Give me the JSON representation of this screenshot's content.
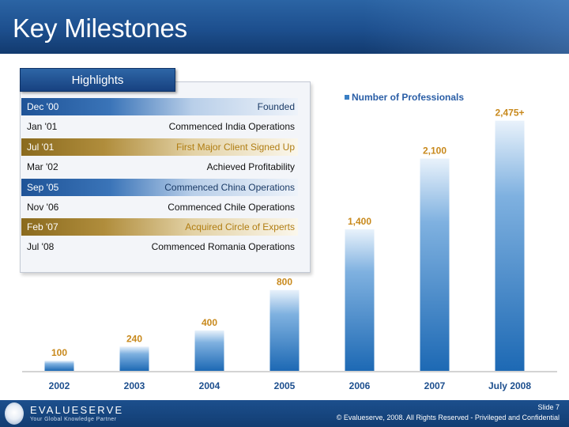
{
  "slide": {
    "title": "Key Milestones",
    "highlights_header": "Highlights",
    "milestones": [
      {
        "date": "Dec '00",
        "event": "Founded",
        "style": "blue"
      },
      {
        "date": "Jan '01",
        "event": "Commenced India Operations",
        "style": "plain"
      },
      {
        "date": "Jul '01",
        "event": "First Major Client Signed Up",
        "style": "gold"
      },
      {
        "date": "Mar '02",
        "event": "Achieved Profitability",
        "style": "plain"
      },
      {
        "date": "Sep '05",
        "event": "Commenced China Operations",
        "style": "blue"
      },
      {
        "date": "Nov '06",
        "event": "Commenced Chile Operations",
        "style": "plain"
      },
      {
        "date": "Feb '07",
        "event": "Acquired Circle of Experts",
        "style": "gold"
      },
      {
        "date": "Jul '08",
        "event": "Commenced Romania Operations",
        "style": "plain"
      }
    ],
    "footer": {
      "logo_text": "EVALUESERVE",
      "logo_tagline": "Your Global Knowledge Partner",
      "slide_number": "Slide 7",
      "copyright": "© Evalueserve, 2008. All Rights Reserved - Privileged and Confidential"
    }
  },
  "chart_data": {
    "type": "bar",
    "legend": "Number of Professionals",
    "legend_position": "top-right",
    "categories": [
      "2002",
      "2003",
      "2004",
      "2005",
      "2006",
      "2007",
      "July 2008"
    ],
    "values": [
      100,
      240,
      400,
      800,
      1400,
      2100,
      2475
    ],
    "value_labels": [
      "100",
      "240",
      "400",
      "800",
      "1,400",
      "2,100",
      "2,475+"
    ],
    "ylim": [
      0,
      2550
    ],
    "grid": false,
    "bar_color": "#2a78c2"
  }
}
